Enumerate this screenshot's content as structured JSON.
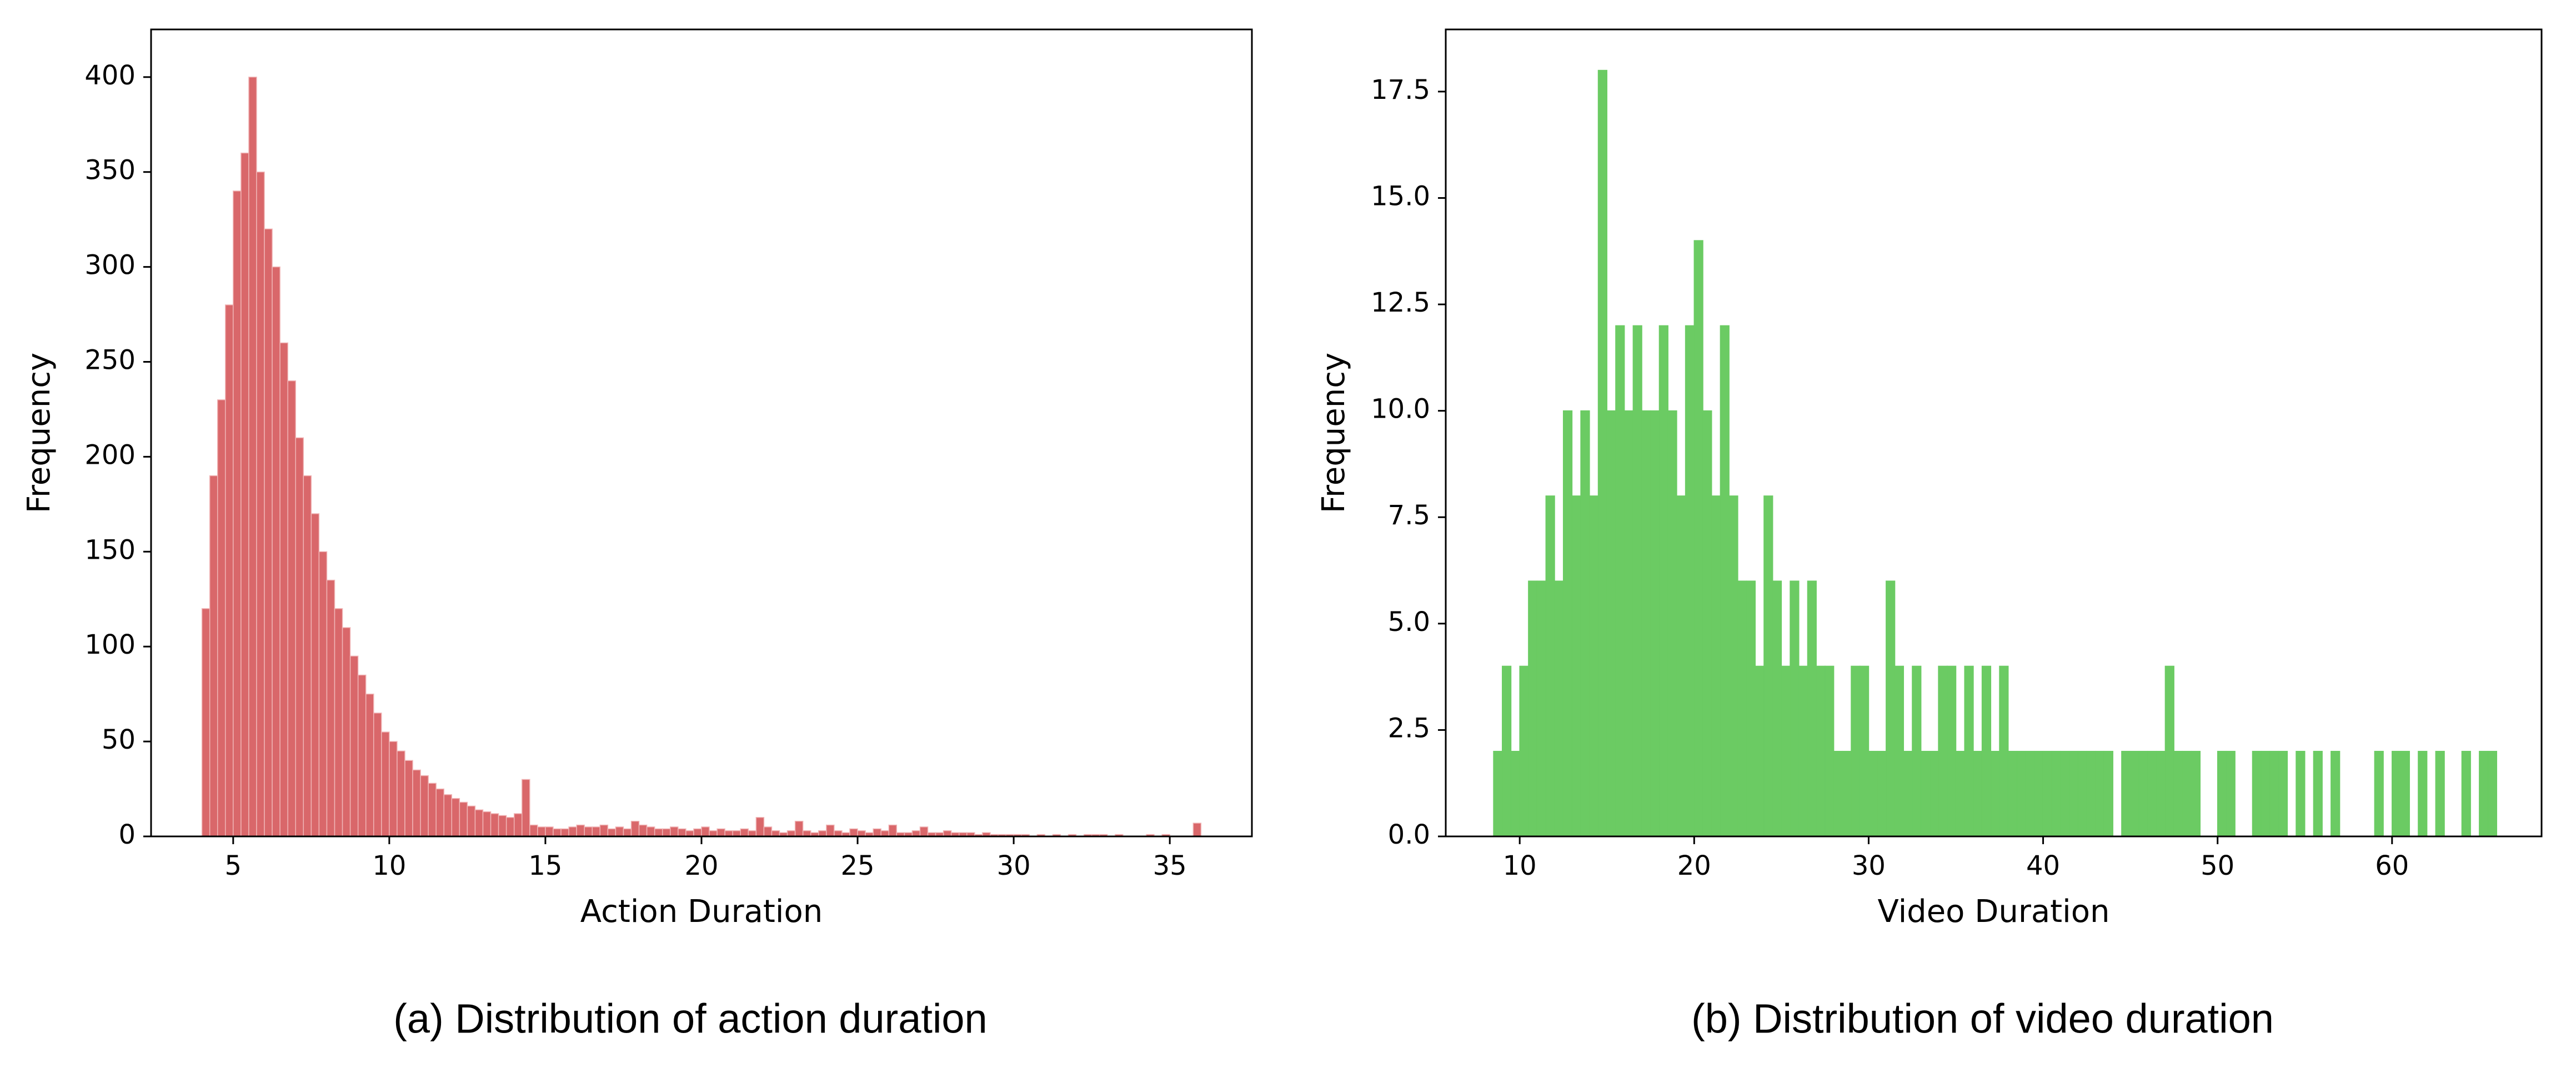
{
  "chart_data": [
    {
      "type": "histogram",
      "caption": "(a) Distribution of action duration",
      "xlabel": "Action Duration",
      "ylabel": "Frequency",
      "color": "#d9676a",
      "edgecolor": "#f0b5b6",
      "bins": [
        4,
        4.25,
        4.5,
        4.75,
        5,
        5.25,
        5.5,
        5.75,
        6,
        6.25,
        6.5,
        6.75,
        7,
        7.25,
        7.5,
        7.75,
        8,
        8.25,
        8.5,
        8.75,
        9,
        9.25,
        9.5,
        9.75,
        10,
        10.25,
        10.5,
        10.75,
        11,
        11.25,
        11.5,
        11.75,
        12,
        12.25,
        12.5,
        12.75,
        13,
        13.25,
        13.5,
        13.75,
        14,
        14.25,
        14.5,
        14.75,
        15,
        15.25,
        15.5,
        15.75,
        16,
        16.25,
        16.5,
        16.75,
        17,
        17.25,
        17.5,
        17.75,
        18,
        18.25,
        18.5,
        18.75,
        19,
        19.25,
        19.5,
        19.75,
        20,
        20.25,
        20.5,
        20.75,
        21,
        21.25,
        21.5,
        21.75,
        22,
        22.25,
        22.5,
        22.75,
        23,
        23.25,
        23.5,
        23.75,
        24,
        24.25,
        24.5,
        24.75,
        25,
        25.25,
        25.5,
        25.75,
        26,
        26.25,
        26.5,
        26.75,
        27,
        27.25,
        27.5,
        27.75,
        28,
        28.25,
        28.5,
        28.75,
        29,
        29.25,
        29.5,
        29.75,
        30,
        30.25,
        30.5,
        30.75,
        31,
        31.25,
        31.5,
        31.75,
        32,
        32.25,
        32.5,
        32.75,
        33,
        33.25,
        33.5,
        33.75,
        34,
        34.25,
        34.5,
        34.75,
        35,
        35.25,
        35.5,
        35.75,
        36
      ],
      "values": [
        120,
        190,
        230,
        280,
        340,
        360,
        400,
        350,
        320,
        300,
        260,
        240,
        210,
        190,
        170,
        150,
        135,
        120,
        110,
        95,
        85,
        75,
        65,
        55,
        50,
        45,
        40,
        35,
        32,
        28,
        25,
        22,
        20,
        18,
        16,
        14,
        13,
        12,
        11,
        10,
        12,
        30,
        6,
        5,
        5,
        4,
        4,
        5,
        6,
        5,
        5,
        6,
        4,
        5,
        4,
        8,
        6,
        5,
        4,
        4,
        5,
        4,
        3,
        4,
        5,
        3,
        4,
        3,
        3,
        4,
        3,
        10,
        5,
        3,
        2,
        3,
        8,
        3,
        2,
        3,
        6,
        3,
        2,
        4,
        3,
        2,
        4,
        3,
        6,
        2,
        2,
        3,
        5,
        2,
        2,
        3,
        2,
        2,
        2,
        1,
        2,
        1,
        1,
        1,
        1,
        1,
        0,
        1,
        0,
        1,
        0,
        1,
        0,
        1,
        1,
        1,
        0,
        1,
        0,
        0,
        0,
        1,
        0,
        1,
        0,
        0,
        0,
        7
      ],
      "xlim": [
        2.37,
        37.63
      ],
      "ylim": [
        0,
        425.1
      ],
      "xticks": [
        5,
        10,
        15,
        20,
        25,
        30,
        35
      ],
      "yticks": [
        0,
        50,
        100,
        150,
        200,
        250,
        300,
        350,
        400
      ]
    },
    {
      "type": "histogram",
      "caption": "(b) Distribution of video duration",
      "xlabel": "Video Duration",
      "ylabel": "Frequency",
      "color": "#6bcb63",
      "edgecolor": "#6bcb63",
      "bins": [
        8.5,
        9,
        9.5,
        10,
        10.5,
        11,
        11.5,
        12,
        12.5,
        13,
        13.5,
        14,
        14.5,
        15,
        15.5,
        16,
        16.5,
        17,
        17.5,
        18,
        18.5,
        19,
        19.5,
        20,
        20.5,
        21,
        21.5,
        22,
        22.5,
        23,
        23.5,
        24,
        24.5,
        25,
        25.5,
        26,
        26.5,
        27,
        27.5,
        28,
        28.5,
        29,
        29.5,
        30,
        30.5,
        31,
        31.5,
        32,
        32.5,
        33,
        33.5,
        34,
        34.5,
        35,
        35.5,
        36,
        36.5,
        37,
        37.5,
        38,
        38.5,
        39,
        39.5,
        40,
        40.5,
        41,
        41.5,
        42,
        42.5,
        43,
        43.5,
        44,
        44.5,
        45,
        45.5,
        46,
        46.5,
        47,
        47.5,
        48,
        48.5,
        49,
        49.5,
        50,
        50.5,
        51,
        51.5,
        52,
        52.5,
        53,
        53.5,
        54,
        54.5,
        55,
        55.5,
        56,
        56.5,
        57,
        57.5,
        58,
        58.5,
        59,
        59.5,
        60,
        60.5,
        61,
        61.5,
        62,
        62.5,
        63,
        63.5,
        64,
        64.5,
        65,
        65.5,
        66
      ],
      "values": [
        2,
        4,
        2,
        4,
        6,
        6,
        8,
        6,
        10,
        8,
        10,
        8,
        18,
        10,
        12,
        10,
        12,
        10,
        10,
        12,
        10,
        8,
        12,
        14,
        10,
        8,
        12,
        8,
        6,
        6,
        4,
        8,
        6,
        4,
        6,
        4,
        6,
        4,
        4,
        2,
        2,
        4,
        4,
        2,
        2,
        6,
        4,
        2,
        4,
        2,
        2,
        4,
        4,
        2,
        4,
        2,
        4,
        2,
        4,
        2,
        2,
        2,
        2,
        2,
        2,
        2,
        2,
        2,
        2,
        2,
        2,
        0,
        2,
        2,
        2,
        2,
        2,
        4,
        2,
        2,
        2,
        0,
        0,
        2,
        2,
        0,
        0,
        2,
        2,
        2,
        2,
        0,
        2,
        0,
        2,
        0,
        2,
        0,
        0,
        0,
        0,
        2,
        0,
        2,
        2,
        0,
        2,
        0,
        2,
        0,
        0,
        2,
        0,
        2,
        2
      ],
      "xlim": [
        5.76,
        68.57
      ],
      "ylim": [
        0,
        18.96
      ],
      "xticks": [
        10,
        20,
        30,
        40,
        50,
        60
      ],
      "yticks": [
        {
          "value": 0,
          "label": "0.0"
        },
        2.5,
        {
          "value": 5,
          "label": "5.0"
        },
        7.5,
        {
          "value": 10,
          "label": "10.0"
        },
        12.5,
        {
          "value": 15,
          "label": "15.0"
        },
        17.5
      ]
    }
  ]
}
